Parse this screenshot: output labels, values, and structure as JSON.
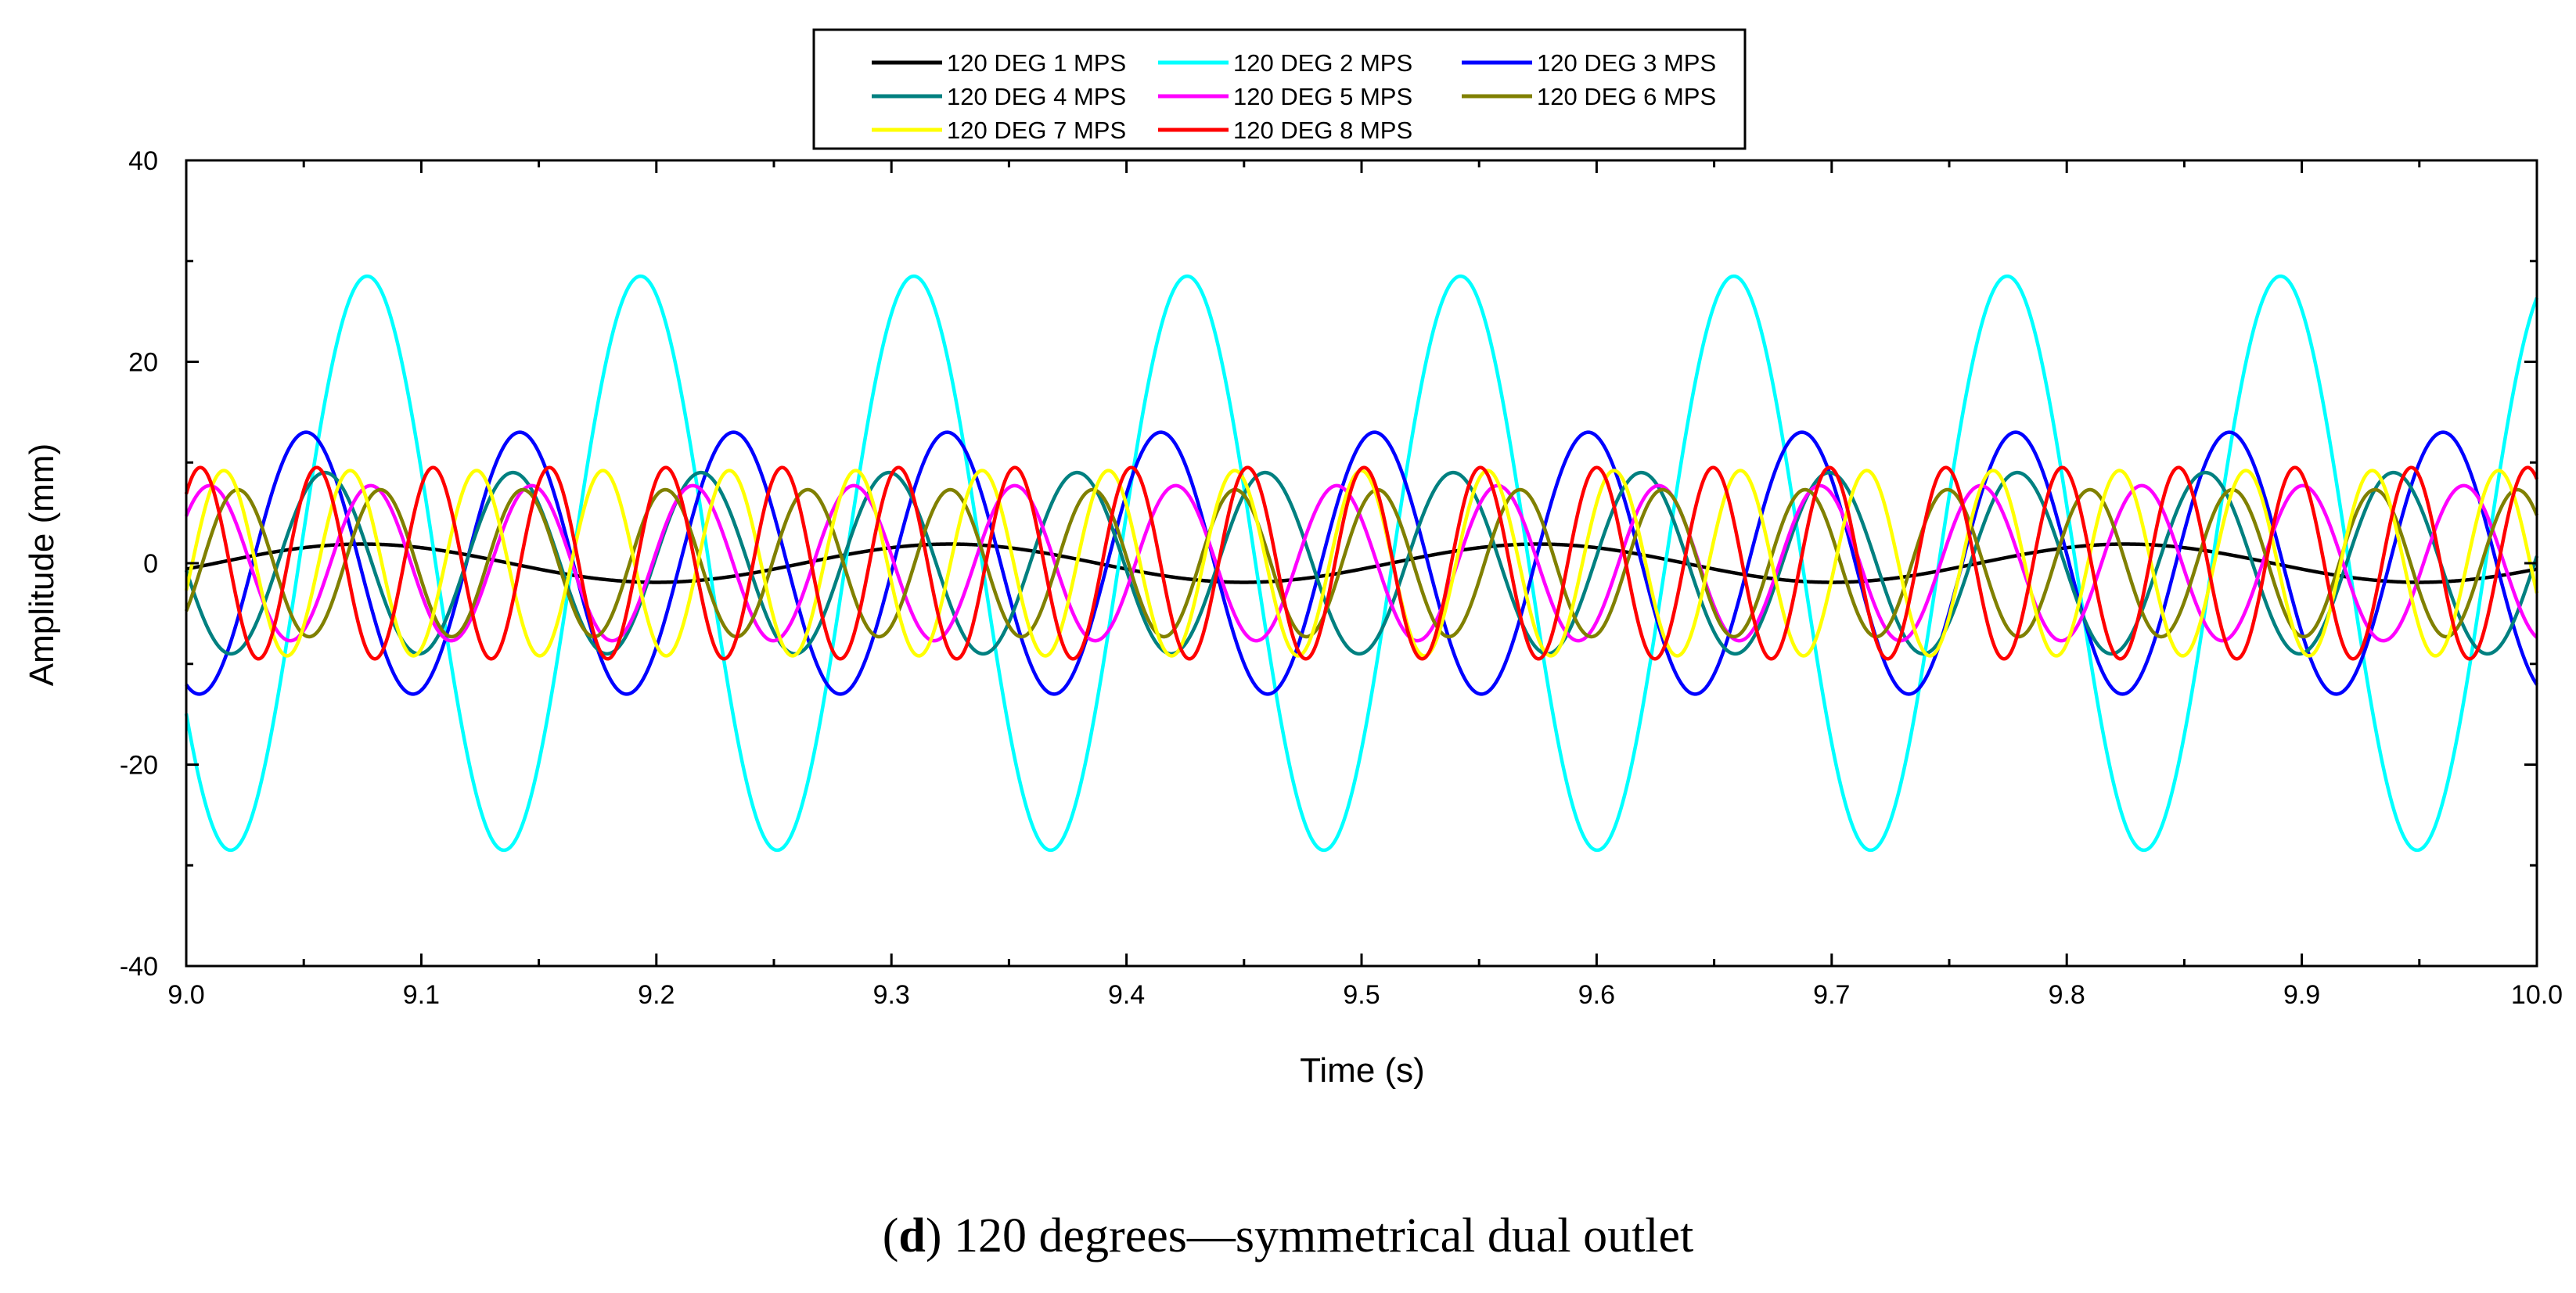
{
  "chart_data": {
    "type": "line",
    "title": "",
    "xlabel": "Time (s)",
    "ylabel": "Amplitude (mm)",
    "xlim": [
      9.0,
      10.0
    ],
    "ylim": [
      -40,
      40
    ],
    "xticks": [
      "9.0",
      "9.1",
      "9.2",
      "9.3",
      "9.4",
      "9.5",
      "9.6",
      "9.7",
      "9.8",
      "9.9",
      "10.0"
    ],
    "yticks": [
      "40",
      "20",
      "0",
      "-20",
      "-40"
    ],
    "grid": false,
    "legend_position": "top-center",
    "series": [
      {
        "name": "120 DEG 1 MPS",
        "color": "#000000",
        "amplitude": 1.9,
        "frequency_hz": 4.0,
        "phase_peak_time_s": 9.075,
        "offset": 0
      },
      {
        "name": "120 DEG 2 MPS",
        "color": "#00ffff",
        "amplitude": 28.5,
        "frequency_hz": 8.6,
        "phase_peak_time_s": 9.077,
        "offset": 0
      },
      {
        "name": "120 DEG 3 MPS",
        "color": "#0000ff",
        "amplitude": 13.0,
        "frequency_hz": 11.0,
        "phase_peak_time_s": 9.051,
        "offset": 0
      },
      {
        "name": "120 DEG 4 MPS",
        "color": "#008080",
        "amplitude": 9.0,
        "frequency_hz": 12.5,
        "phase_peak_time_s": 9.059,
        "offset": 0
      },
      {
        "name": "120 DEG 5 MPS",
        "color": "#ff00ff",
        "amplitude": 7.7,
        "frequency_hz": 14.6,
        "phase_peak_time_s": 9.01,
        "offset": 0
      },
      {
        "name": "120 DEG 6 MPS",
        "color": "#808000",
        "amplitude": 7.3,
        "frequency_hz": 16.5,
        "phase_peak_time_s": 9.022,
        "offset": 0
      },
      {
        "name": "120 DEG 7 MPS",
        "color": "#ffff00",
        "amplitude": 9.2,
        "frequency_hz": 18.6,
        "phase_peak_time_s": 9.016,
        "offset": 0
      },
      {
        "name": "120 DEG 8 MPS",
        "color": "#ff0000",
        "amplitude": 9.5,
        "frequency_hz": 20.2,
        "phase_peak_time_s": 9.006,
        "offset": 0
      }
    ]
  },
  "caption": {
    "label": "d",
    "text": " 120 degrees—symmetrical dual outlet"
  }
}
